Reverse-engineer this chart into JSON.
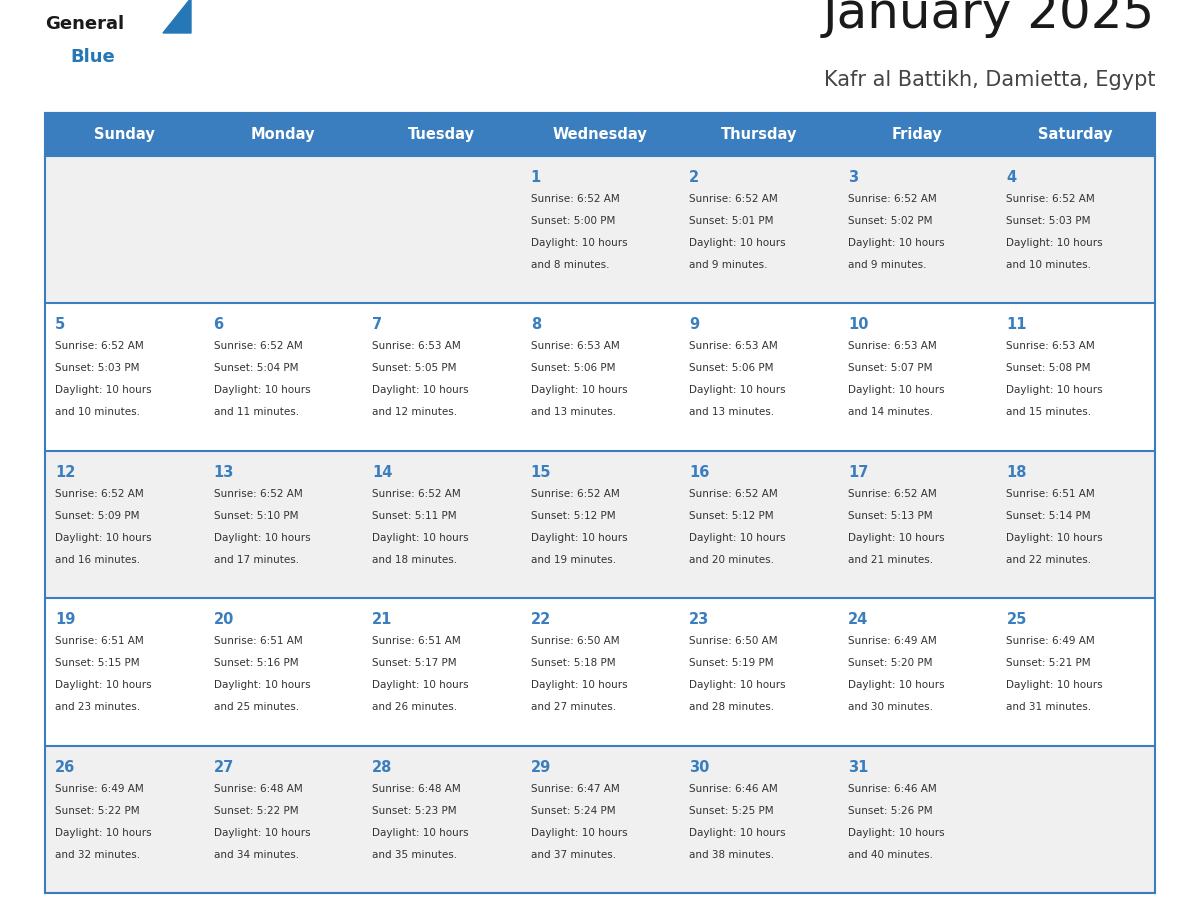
{
  "title": "January 2025",
  "subtitle": "Kafr al Battikh, Damietta, Egypt",
  "days_of_week": [
    "Sunday",
    "Monday",
    "Tuesday",
    "Wednesday",
    "Thursday",
    "Friday",
    "Saturday"
  ],
  "header_bg": "#3a7ebf",
  "header_text": "#ffffff",
  "row_bg_odd": "#f0f0f0",
  "row_bg_even": "#ffffff",
  "border_color": "#3a7ebf",
  "day_num_color": "#3a7ebf",
  "cell_text_color": "#333333",
  "calendar_data": [
    [
      {
        "day": null,
        "sunrise": null,
        "sunset": null,
        "daylight_line1": null,
        "daylight_line2": null
      },
      {
        "day": null,
        "sunrise": null,
        "sunset": null,
        "daylight_line1": null,
        "daylight_line2": null
      },
      {
        "day": null,
        "sunrise": null,
        "sunset": null,
        "daylight_line1": null,
        "daylight_line2": null
      },
      {
        "day": 1,
        "sunrise": "6:52 AM",
        "sunset": "5:00 PM",
        "daylight_line1": "Daylight: 10 hours",
        "daylight_line2": "and 8 minutes."
      },
      {
        "day": 2,
        "sunrise": "6:52 AM",
        "sunset": "5:01 PM",
        "daylight_line1": "Daylight: 10 hours",
        "daylight_line2": "and 9 minutes."
      },
      {
        "day": 3,
        "sunrise": "6:52 AM",
        "sunset": "5:02 PM",
        "daylight_line1": "Daylight: 10 hours",
        "daylight_line2": "and 9 minutes."
      },
      {
        "day": 4,
        "sunrise": "6:52 AM",
        "sunset": "5:03 PM",
        "daylight_line1": "Daylight: 10 hours",
        "daylight_line2": "and 10 minutes."
      }
    ],
    [
      {
        "day": 5,
        "sunrise": "6:52 AM",
        "sunset": "5:03 PM",
        "daylight_line1": "Daylight: 10 hours",
        "daylight_line2": "and 10 minutes."
      },
      {
        "day": 6,
        "sunrise": "6:52 AM",
        "sunset": "5:04 PM",
        "daylight_line1": "Daylight: 10 hours",
        "daylight_line2": "and 11 minutes."
      },
      {
        "day": 7,
        "sunrise": "6:53 AM",
        "sunset": "5:05 PM",
        "daylight_line1": "Daylight: 10 hours",
        "daylight_line2": "and 12 minutes."
      },
      {
        "day": 8,
        "sunrise": "6:53 AM",
        "sunset": "5:06 PM",
        "daylight_line1": "Daylight: 10 hours",
        "daylight_line2": "and 13 minutes."
      },
      {
        "day": 9,
        "sunrise": "6:53 AM",
        "sunset": "5:06 PM",
        "daylight_line1": "Daylight: 10 hours",
        "daylight_line2": "and 13 minutes."
      },
      {
        "day": 10,
        "sunrise": "6:53 AM",
        "sunset": "5:07 PM",
        "daylight_line1": "Daylight: 10 hours",
        "daylight_line2": "and 14 minutes."
      },
      {
        "day": 11,
        "sunrise": "6:53 AM",
        "sunset": "5:08 PM",
        "daylight_line1": "Daylight: 10 hours",
        "daylight_line2": "and 15 minutes."
      }
    ],
    [
      {
        "day": 12,
        "sunrise": "6:52 AM",
        "sunset": "5:09 PM",
        "daylight_line1": "Daylight: 10 hours",
        "daylight_line2": "and 16 minutes."
      },
      {
        "day": 13,
        "sunrise": "6:52 AM",
        "sunset": "5:10 PM",
        "daylight_line1": "Daylight: 10 hours",
        "daylight_line2": "and 17 minutes."
      },
      {
        "day": 14,
        "sunrise": "6:52 AM",
        "sunset": "5:11 PM",
        "daylight_line1": "Daylight: 10 hours",
        "daylight_line2": "and 18 minutes."
      },
      {
        "day": 15,
        "sunrise": "6:52 AM",
        "sunset": "5:12 PM",
        "daylight_line1": "Daylight: 10 hours",
        "daylight_line2": "and 19 minutes."
      },
      {
        "day": 16,
        "sunrise": "6:52 AM",
        "sunset": "5:12 PM",
        "daylight_line1": "Daylight: 10 hours",
        "daylight_line2": "and 20 minutes."
      },
      {
        "day": 17,
        "sunrise": "6:52 AM",
        "sunset": "5:13 PM",
        "daylight_line1": "Daylight: 10 hours",
        "daylight_line2": "and 21 minutes."
      },
      {
        "day": 18,
        "sunrise": "6:51 AM",
        "sunset": "5:14 PM",
        "daylight_line1": "Daylight: 10 hours",
        "daylight_line2": "and 22 minutes."
      }
    ],
    [
      {
        "day": 19,
        "sunrise": "6:51 AM",
        "sunset": "5:15 PM",
        "daylight_line1": "Daylight: 10 hours",
        "daylight_line2": "and 23 minutes."
      },
      {
        "day": 20,
        "sunrise": "6:51 AM",
        "sunset": "5:16 PM",
        "daylight_line1": "Daylight: 10 hours",
        "daylight_line2": "and 25 minutes."
      },
      {
        "day": 21,
        "sunrise": "6:51 AM",
        "sunset": "5:17 PM",
        "daylight_line1": "Daylight: 10 hours",
        "daylight_line2": "and 26 minutes."
      },
      {
        "day": 22,
        "sunrise": "6:50 AM",
        "sunset": "5:18 PM",
        "daylight_line1": "Daylight: 10 hours",
        "daylight_line2": "and 27 minutes."
      },
      {
        "day": 23,
        "sunrise": "6:50 AM",
        "sunset": "5:19 PM",
        "daylight_line1": "Daylight: 10 hours",
        "daylight_line2": "and 28 minutes."
      },
      {
        "day": 24,
        "sunrise": "6:49 AM",
        "sunset": "5:20 PM",
        "daylight_line1": "Daylight: 10 hours",
        "daylight_line2": "and 30 minutes."
      },
      {
        "day": 25,
        "sunrise": "6:49 AM",
        "sunset": "5:21 PM",
        "daylight_line1": "Daylight: 10 hours",
        "daylight_line2": "and 31 minutes."
      }
    ],
    [
      {
        "day": 26,
        "sunrise": "6:49 AM",
        "sunset": "5:22 PM",
        "daylight_line1": "Daylight: 10 hours",
        "daylight_line2": "and 32 minutes."
      },
      {
        "day": 27,
        "sunrise": "6:48 AM",
        "sunset": "5:22 PM",
        "daylight_line1": "Daylight: 10 hours",
        "daylight_line2": "and 34 minutes."
      },
      {
        "day": 28,
        "sunrise": "6:48 AM",
        "sunset": "5:23 PM",
        "daylight_line1": "Daylight: 10 hours",
        "daylight_line2": "and 35 minutes."
      },
      {
        "day": 29,
        "sunrise": "6:47 AM",
        "sunset": "5:24 PM",
        "daylight_line1": "Daylight: 10 hours",
        "daylight_line2": "and 37 minutes."
      },
      {
        "day": 30,
        "sunrise": "6:46 AM",
        "sunset": "5:25 PM",
        "daylight_line1": "Daylight: 10 hours",
        "daylight_line2": "and 38 minutes."
      },
      {
        "day": 31,
        "sunrise": "6:46 AM",
        "sunset": "5:26 PM",
        "daylight_line1": "Daylight: 10 hours",
        "daylight_line2": "and 40 minutes."
      },
      {
        "day": null,
        "sunrise": null,
        "sunset": null,
        "daylight_line1": null,
        "daylight_line2": null
      }
    ]
  ]
}
